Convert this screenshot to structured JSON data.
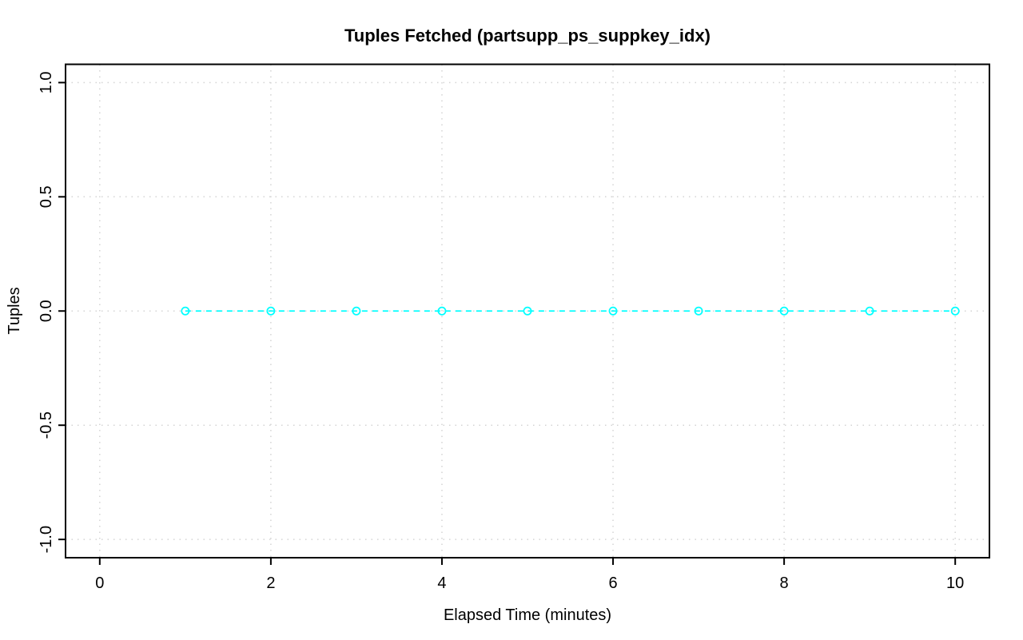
{
  "figure": {
    "background": "#ffffff"
  },
  "chart_data": {
    "type": "line",
    "title": "Tuples Fetched (partsupp_ps_suppkey_idx)",
    "xlabel": "Elapsed Time (minutes)",
    "ylabel": "Tuples",
    "xlim": [
      -0.4,
      10.4
    ],
    "ylim": [
      -1.08,
      1.08
    ],
    "x_ticks": [
      0,
      2,
      4,
      6,
      8,
      10
    ],
    "x_tick_labels": [
      "0",
      "2",
      "4",
      "6",
      "8",
      "10"
    ],
    "y_ticks": [
      -1.0,
      -0.5,
      0.0,
      0.5,
      1.0
    ],
    "y_tick_labels": [
      "-1.0",
      "-0.5",
      "0.0",
      "0.5",
      "1.0"
    ],
    "grid": {
      "show": true,
      "style": "dotted",
      "color": "#d4d4d4"
    },
    "axis_color": "#000000",
    "legend_position": "none",
    "series": [
      {
        "name": "tuples-fetched",
        "color": "#00ffff",
        "line_style": "dashed",
        "marker": "open-circle",
        "x": [
          1,
          2,
          3,
          4,
          5,
          6,
          7,
          8,
          9,
          10
        ],
        "y": [
          0,
          0,
          0,
          0,
          0,
          0,
          0,
          0,
          0,
          0
        ]
      }
    ]
  }
}
